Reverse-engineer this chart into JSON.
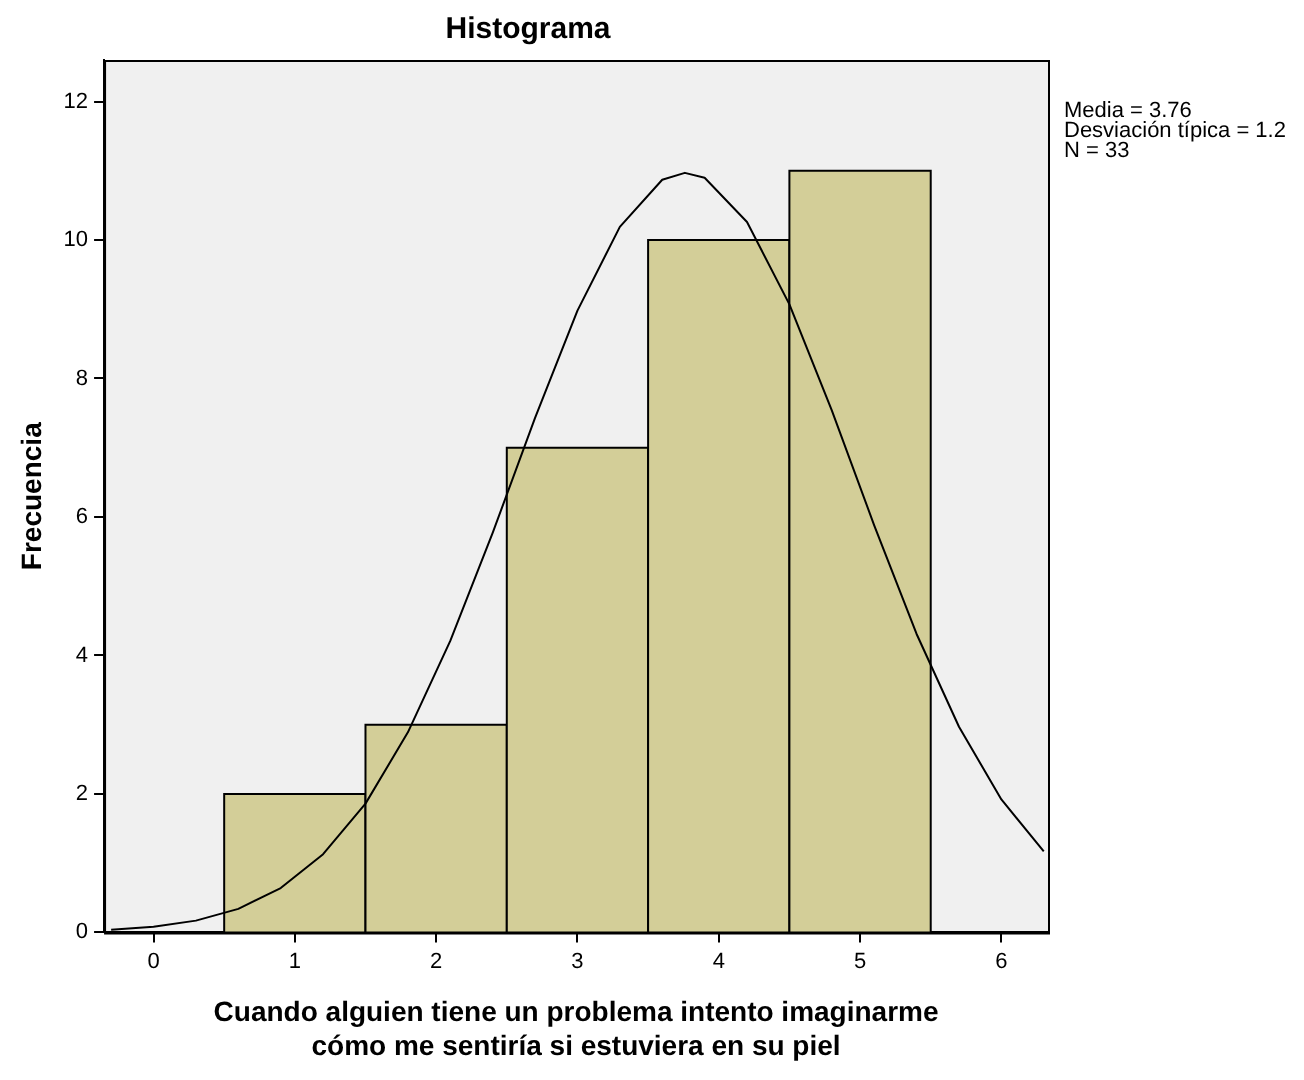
{
  "chart_data": {
    "type": "histogram",
    "title": "Histograma",
    "xlabel": "Cuando alguien tiene un problema intento imaginarme\ncómo me sentiría si estuviera en su piel",
    "ylabel": "Frecuencia",
    "bins": [
      0.5,
      1.5,
      2.5,
      3.5,
      4.5,
      5.5
    ],
    "values": [
      2,
      3,
      7,
      10,
      11
    ],
    "color": "#d3ce98",
    "series": [
      {
        "type": "line",
        "color": "#000000",
        "x": [
          -0.3,
          0,
          0.3,
          0.6,
          0.9,
          1.2,
          1.5,
          1.8,
          2.1,
          2.4,
          2.7,
          3.0,
          3.3,
          3.6,
          3.76,
          3.9,
          4.2,
          4.5,
          4.8,
          5.1,
          5.4,
          5.7,
          6.0,
          6.3
        ],
        "values": [
          0.04,
          0.08,
          0.17,
          0.34,
          0.64,
          1.13,
          1.86,
          2.89,
          4.21,
          5.77,
          7.43,
          8.98,
          10.19,
          10.87,
          10.97,
          10.9,
          10.26,
          9.07,
          7.54,
          5.88,
          4.31,
          2.97,
          1.92,
          1.17
        ]
      }
    ],
    "xlim": [
      -0.35,
      6.33
    ],
    "ylim": [
      0,
      12.6
    ],
    "xticks": [
      0,
      1,
      2,
      3,
      4,
      5,
      6
    ],
    "yticks": [
      0,
      2,
      4,
      6,
      8,
      10,
      12
    ],
    "grid": false,
    "legend": false,
    "marker": "none",
    "line_style": "solid",
    "annotations": [
      "Media = 3.76",
      "Desviación típica = 1.2",
      "N = 33"
    ]
  }
}
